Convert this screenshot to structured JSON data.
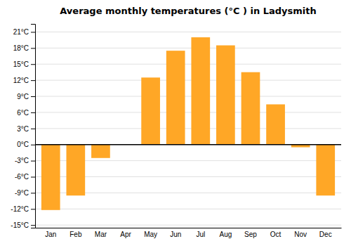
{
  "chart_data": {
    "type": "bar",
    "title": "Average monthly temperatures (°C ) in Ladysmith",
    "categories": [
      "Jan",
      "Feb",
      "Mar",
      "Apr",
      "May",
      "Jun",
      "Jul",
      "Aug",
      "Sep",
      "Oct",
      "Nov",
      "Dec"
    ],
    "values": [
      -12.2,
      -9.5,
      -2.5,
      0.0,
      12.5,
      17.5,
      20.0,
      18.5,
      13.5,
      7.5,
      -0.5,
      -9.5
    ],
    "color": "#FFA726",
    "ylim": [
      -15.5,
      22.5
    ],
    "yticks": [
      {
        "value": -15,
        "label": "-15°C"
      },
      {
        "value": -12,
        "label": "-12°C"
      },
      {
        "value": -9,
        "label": "-9°C"
      },
      {
        "value": -6,
        "label": "-6°C"
      },
      {
        "value": -3,
        "label": "-3°C"
      },
      {
        "value": 0,
        "label": "0°C"
      },
      {
        "value": 3,
        "label": "3°C"
      },
      {
        "value": 6,
        "label": "6°C"
      },
      {
        "value": 9,
        "label": "9°C"
      },
      {
        "value": 12,
        "label": "12°C"
      },
      {
        "value": 15,
        "label": "15°C"
      },
      {
        "value": 18,
        "label": "18°C"
      },
      {
        "value": 21,
        "label": "21°C"
      }
    ],
    "grid": true
  }
}
